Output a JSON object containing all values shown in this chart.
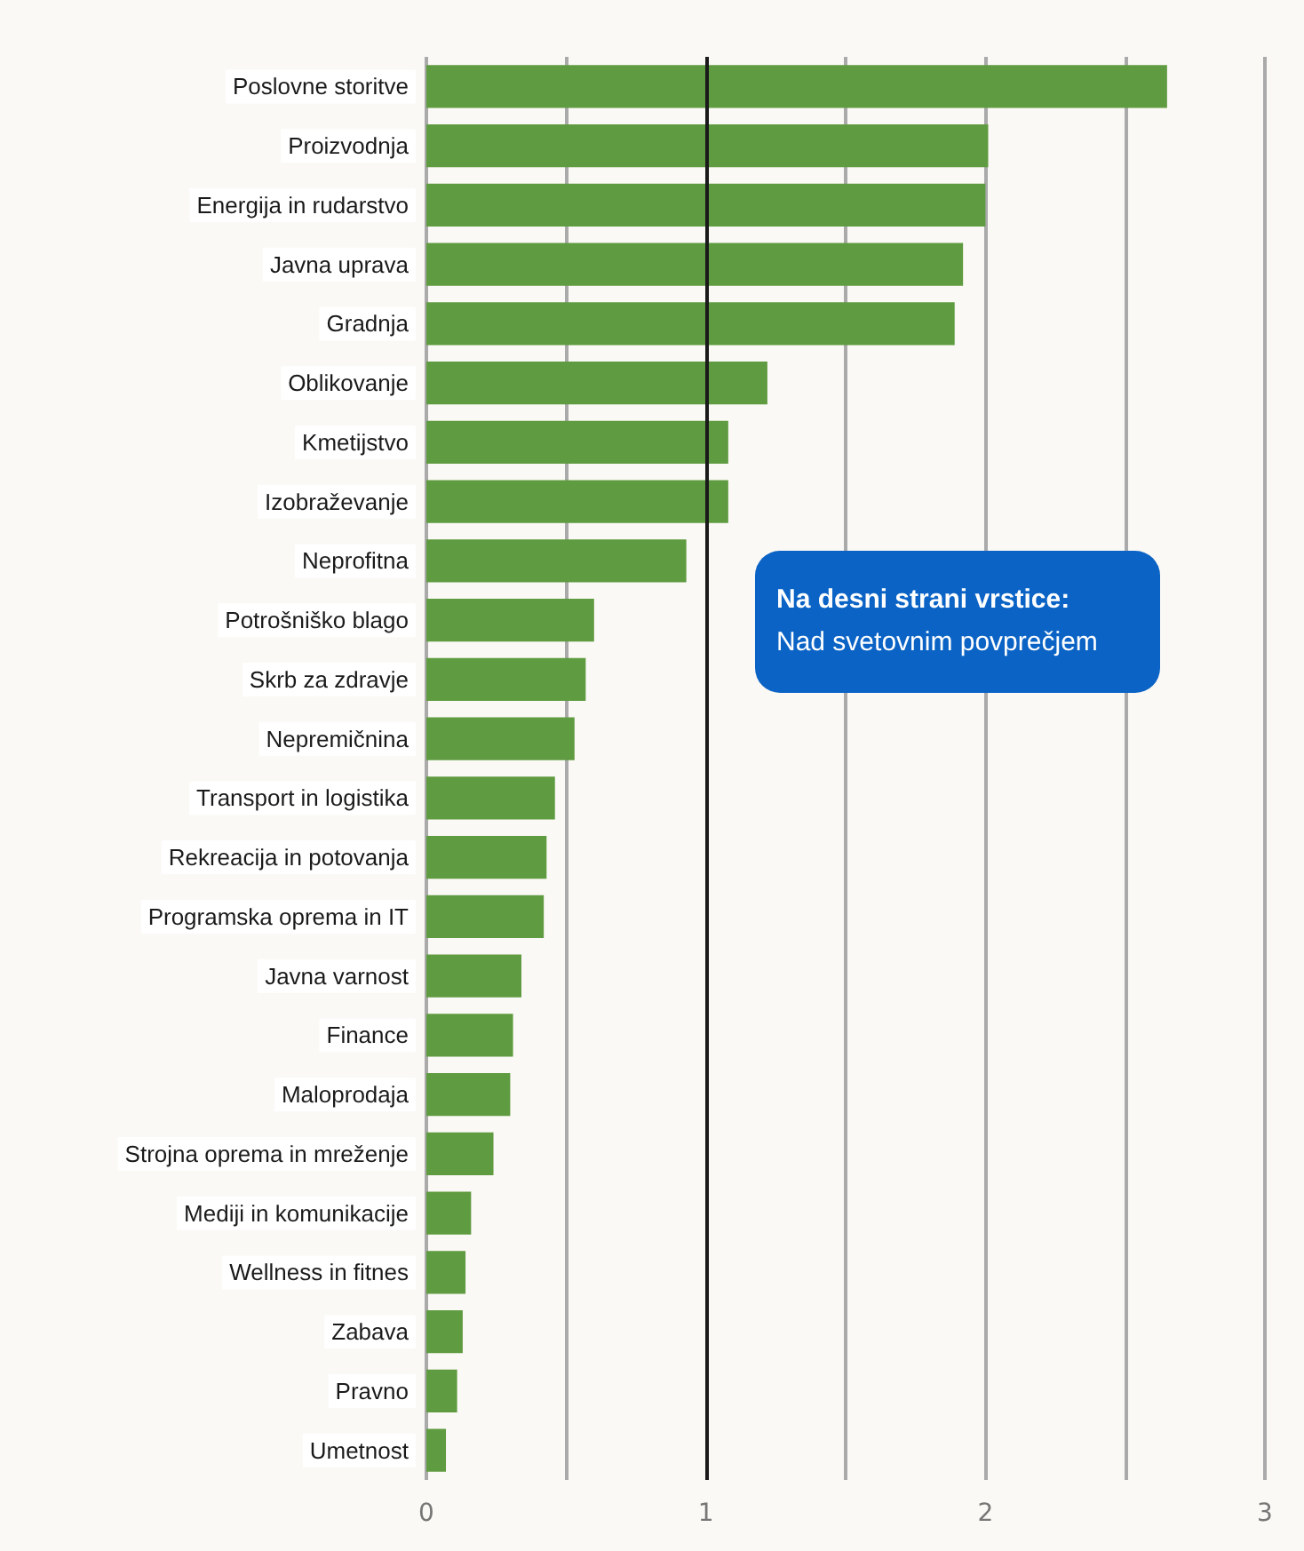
{
  "chart_data": {
    "type": "bar",
    "orientation": "horizontal",
    "categories": [
      "Poslovne storitve",
      "Proizvodnja",
      "Energija in rudarstvo",
      "Javna uprava",
      "Gradnja",
      "Oblikovanje",
      "Kmetijstvo",
      "Izobraževanje",
      "Neprofitna",
      "Potrošniško blago",
      "Skrb za zdravje",
      "Nepremičnina",
      "Transport in logistika",
      "Rekreacija in potovanja",
      "Programska oprema in IT",
      "Javna varnost",
      "Finance",
      "Maloprodaja",
      "Strojna oprema in mreženje",
      "Mediji in komunikacije",
      "Wellness in fitnes",
      "Zabava",
      "Pravno",
      "Umetnost"
    ],
    "values": [
      2.65,
      2.01,
      2.0,
      1.92,
      1.89,
      1.22,
      1.08,
      1.08,
      0.93,
      0.6,
      0.57,
      0.53,
      0.46,
      0.43,
      0.42,
      0.34,
      0.31,
      0.3,
      0.24,
      0.16,
      0.14,
      0.13,
      0.11,
      0.07
    ],
    "color": "#5f9b40",
    "xlim": [
      0,
      3
    ],
    "xticks": [
      0,
      {
        "value": 0.5,
        "label": null
      },
      1,
      {
        "value": 1.5,
        "label": null
      },
      2,
      {
        "value": 2.5,
        "label": null
      },
      3
    ],
    "grid": "x",
    "ref_lines": [
      {
        "axis": "x",
        "value": 1,
        "label": null,
        "color": "#1a1a1a"
      }
    ],
    "annotations": [
      "Na desni strani vrstice:\nNad svetovnim povprečjem"
    ]
  }
}
